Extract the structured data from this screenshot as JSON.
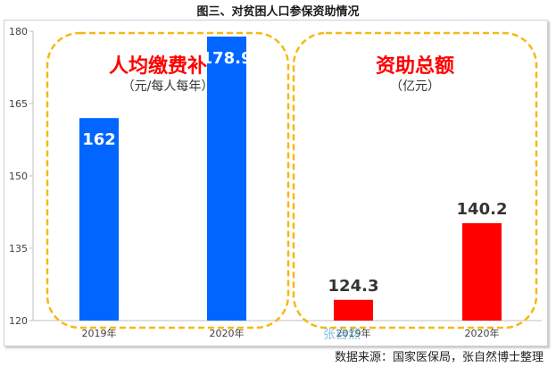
{
  "title": "图三、对贫困人口参保资助情况",
  "source": "数据来源：国家医保局，张自然博士整理",
  "watermark": "张自然",
  "colors": {
    "left_bar": "#0066ff",
    "right_bar": "#ff0000",
    "callout_border": "#f5b914",
    "callout_text": "#ff0000"
  },
  "chart_data": {
    "type": "bar",
    "ylim": [
      120,
      180
    ],
    "yticks": [
      120,
      135,
      150,
      165,
      180
    ],
    "grid": false,
    "groups": [
      {
        "title": "人均缴费补贴",
        "unit": "（元/每人每年）",
        "categories": [
          "2019年",
          "2020年"
        ],
        "values": [
          162,
          178.9
        ],
        "value_labels": [
          "162",
          "178.9"
        ],
        "label_position": "inside",
        "color": "#0066ff"
      },
      {
        "title": "资助总额",
        "unit": "（亿元）",
        "categories": [
          "2019年",
          "2020年"
        ],
        "values": [
          124.3,
          140.2
        ],
        "value_labels": [
          "124.3",
          "140.2"
        ],
        "label_position": "above",
        "color": "#ff0000"
      }
    ]
  }
}
